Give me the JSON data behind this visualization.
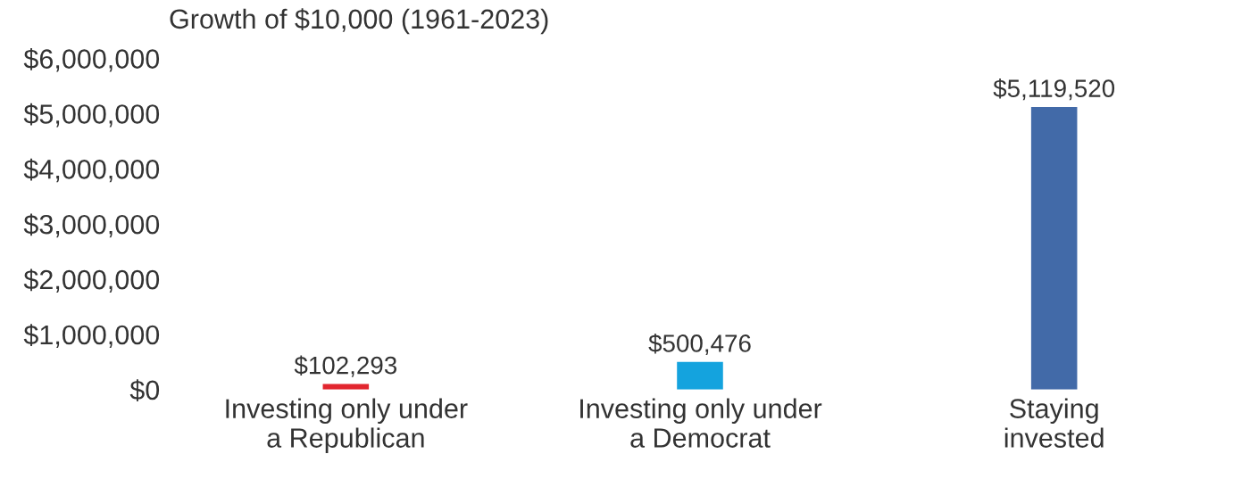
{
  "chart_data": {
    "type": "bar",
    "title": "Growth of $10,000 (1961-2023)",
    "categories": [
      "Investing only under\na Republican",
      "Investing only under\na Democrat",
      "Staying\ninvested"
    ],
    "values": [
      102293,
      500476,
      5119520
    ],
    "colors": [
      "#e2262f",
      "#14a3de",
      "#426aa8"
    ],
    "value_labels": [
      "$102,293",
      "$500,476",
      "$5,119,520"
    ],
    "ylim": [
      0,
      6000000
    ],
    "yticks": [
      {
        "value": 0,
        "label": "$0"
      },
      {
        "value": 1000000,
        "label": "$1,000,000"
      },
      {
        "value": 2000000,
        "label": "$2,000,000"
      },
      {
        "value": 3000000,
        "label": "$3,000,000"
      },
      {
        "value": 4000000,
        "label": "$4,000,000"
      },
      {
        "value": 5000000,
        "label": "$5,000,000"
      },
      {
        "value": 6000000,
        "label": "$6,000,000"
      }
    ],
    "grid": false,
    "legend": false
  }
}
